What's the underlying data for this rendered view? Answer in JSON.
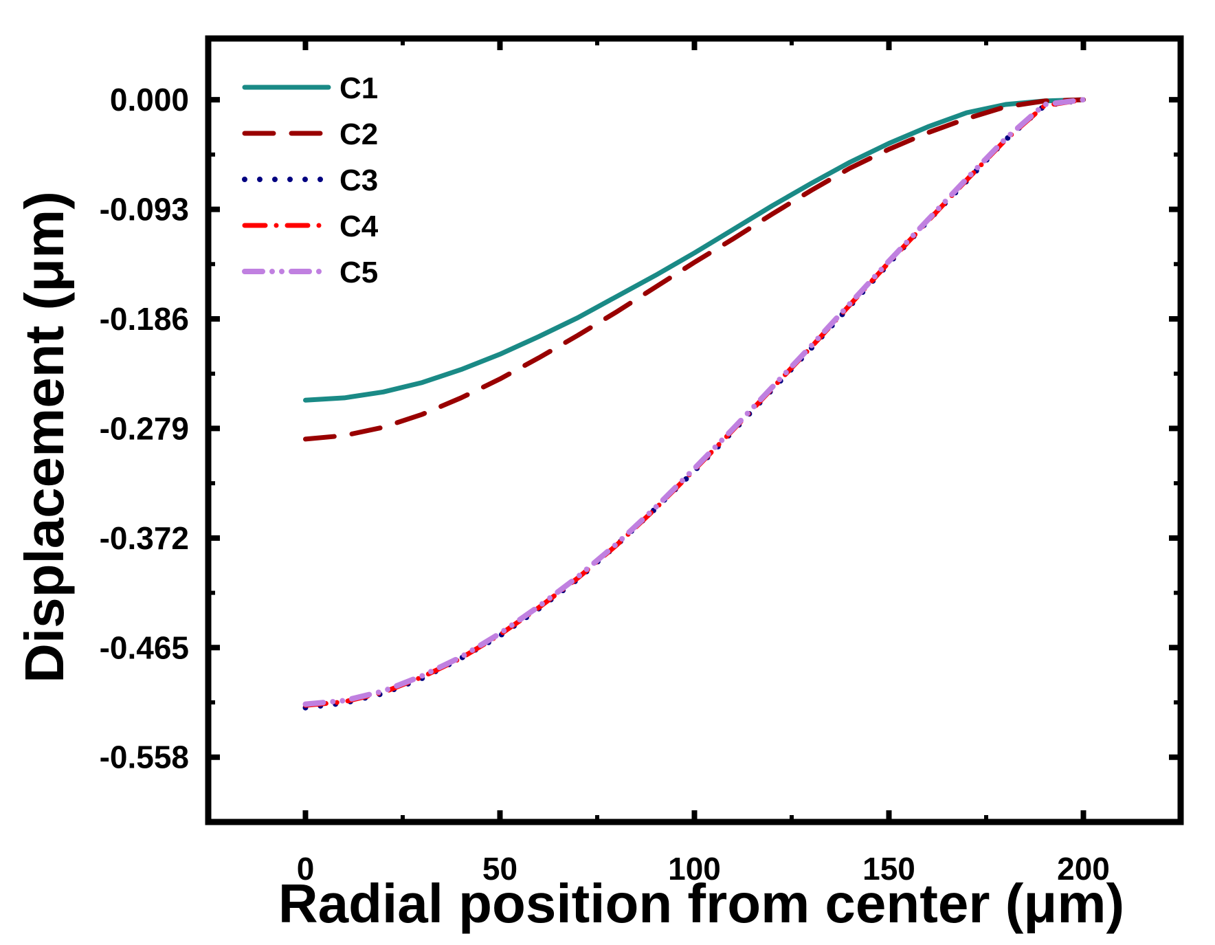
{
  "chart_data": {
    "type": "line",
    "xlabel": "Radial position from center (μm)",
    "ylabel": "Displacement (μm)",
    "xlim": [
      -25,
      225
    ],
    "ylim": [
      -0.613,
      0.052
    ],
    "xticks": [
      0,
      50,
      100,
      150,
      200
    ],
    "xtick_labels": [
      "0",
      "50",
      "100",
      "150",
      "200"
    ],
    "yticks": [
      0.0,
      -0.093,
      -0.186,
      -0.279,
      -0.372,
      -0.465,
      -0.558
    ],
    "ytick_labels": [
      "0.000",
      "-0.093",
      "-0.186",
      "-0.279",
      "-0.372",
      "-0.465",
      "-0.558"
    ],
    "grid": false,
    "legend": "top-left",
    "x": [
      0,
      10,
      20,
      30,
      40,
      50,
      60,
      70,
      80,
      90,
      100,
      110,
      120,
      130,
      140,
      150,
      160,
      170,
      180,
      190,
      200
    ],
    "series": [
      {
        "name": "C1",
        "color": "#1a8a86",
        "style": "solid",
        "values": [
          -0.255,
          -0.253,
          -0.248,
          -0.24,
          -0.229,
          -0.216,
          -0.201,
          -0.185,
          -0.167,
          -0.149,
          -0.13,
          -0.11,
          -0.09,
          -0.071,
          -0.053,
          -0.037,
          -0.023,
          -0.011,
          -0.004,
          -0.001,
          0.0
        ]
      },
      {
        "name": "C2",
        "color": "#990000",
        "style": "dashed",
        "values": [
          -0.288,
          -0.285,
          -0.278,
          -0.267,
          -0.253,
          -0.237,
          -0.219,
          -0.2,
          -0.18,
          -0.159,
          -0.138,
          -0.118,
          -0.097,
          -0.077,
          -0.058,
          -0.042,
          -0.028,
          -0.016,
          -0.006,
          -0.001,
          0.0
        ]
      },
      {
        "name": "C3",
        "color": "#000080",
        "style": "dotted",
        "values": [
          -0.516,
          -0.512,
          -0.504,
          -0.491,
          -0.474,
          -0.455,
          -0.432,
          -0.407,
          -0.378,
          -0.347,
          -0.315,
          -0.281,
          -0.246,
          -0.211,
          -0.175,
          -0.139,
          -0.103,
          -0.069,
          -0.034,
          -0.005,
          0.0
        ]
      },
      {
        "name": "C4",
        "color": "#ff0000",
        "style": "dashdot",
        "values": [
          -0.514,
          -0.511,
          -0.503,
          -0.49,
          -0.474,
          -0.454,
          -0.431,
          -0.406,
          -0.378,
          -0.347,
          -0.314,
          -0.28,
          -0.245,
          -0.21,
          -0.174,
          -0.138,
          -0.103,
          -0.068,
          -0.034,
          -0.005,
          0.0
        ]
      },
      {
        "name": "C5",
        "color": "#c080e0",
        "style": "dashdotdot",
        "values": [
          -0.513,
          -0.51,
          -0.502,
          -0.489,
          -0.473,
          -0.453,
          -0.43,
          -0.405,
          -0.377,
          -0.346,
          -0.313,
          -0.279,
          -0.244,
          -0.209,
          -0.173,
          -0.137,
          -0.102,
          -0.067,
          -0.033,
          -0.004,
          0.0
        ]
      }
    ]
  }
}
